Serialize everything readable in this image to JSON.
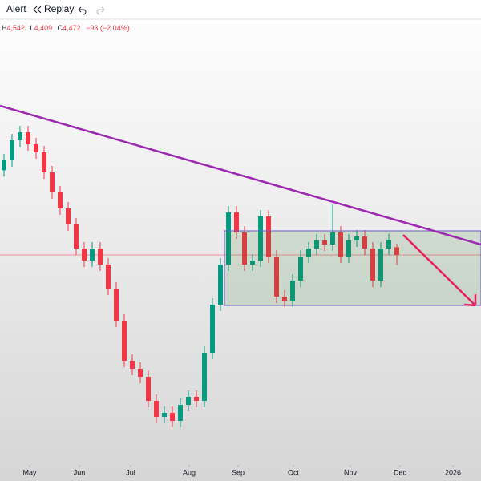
{
  "toolbar": {
    "alert": "Alert",
    "replay": "Replay"
  },
  "legend": {
    "h_label": "H",
    "h": "4,542",
    "l_label": "L",
    "l": "4,409",
    "c_label": "C",
    "c": "4,472",
    "change": "−93 (−2.04%)"
  },
  "chart_data": {
    "type": "candlestick",
    "up_color": "#089981",
    "down_color": "#f23645",
    "xlim": [
      -0.5,
      59.5
    ],
    "ylim": [
      3062,
      6062
    ],
    "xticks": [
      {
        "value": 3.2,
        "label": "May"
      },
      {
        "value": 9.4,
        "label": "Jun"
      },
      {
        "value": 15.8,
        "label": "Jul"
      },
      {
        "value": 23.1,
        "label": "Aug"
      },
      {
        "value": 29.2,
        "label": "Sep"
      },
      {
        "value": 36.1,
        "label": "Oct"
      },
      {
        "value": 43.2,
        "label": "Nov"
      },
      {
        "value": 49.4,
        "label": "Dec"
      },
      {
        "value": 56,
        "label": "2026"
      }
    ],
    "open": [
      5000,
      5062,
      5187,
      5237,
      5162,
      5112,
      4987,
      4862,
      4762,
      4662,
      4512,
      4437,
      4512,
      4412,
      4262,
      4062,
      3812,
      3762,
      3712,
      3562,
      3462,
      3487,
      3437,
      3537,
      3587,
      3562,
      3862,
      4162,
      4412,
      4737,
      4612,
      4412,
      4437,
      4712,
      4462,
      4212,
      4187,
      4312,
      4462,
      4512,
      4562,
      4537,
      4612,
      4462,
      4562,
      4587,
      4512,
      4312,
      4512,
      4520
    ],
    "high": [
      5102,
      5227,
      5277,
      5277,
      5202,
      5152,
      5027,
      4902,
      4802,
      4702,
      4552,
      4552,
      4552,
      4452,
      4302,
      4102,
      3852,
      3802,
      3752,
      3602,
      3527,
      3527,
      3577,
      3627,
      3627,
      3902,
      4202,
      4452,
      4777,
      4777,
      4652,
      4477,
      4752,
      4752,
      4502,
      4252,
      4352,
      4502,
      4552,
      4602,
      4602,
      4787,
      4652,
      4602,
      4627,
      4627,
      4552,
      4552,
      4605,
      4542
    ],
    "low": [
      4960,
      5022,
      5147,
      5122,
      5072,
      4947,
      4822,
      4722,
      4622,
      4472,
      4397,
      4397,
      4372,
      4222,
      4022,
      3772,
      3722,
      3672,
      3522,
      3422,
      3422,
      3397,
      3397,
      3497,
      3522,
      3522,
      3822,
      4122,
      4372,
      4572,
      4372,
      4372,
      4397,
      4422,
      4172,
      4147,
      4147,
      4272,
      4422,
      4472,
      4497,
      4497,
      4422,
      4422,
      4522,
      4472,
      4272,
      4272,
      4472,
      4409
    ],
    "close": [
      5062,
      5187,
      5237,
      5162,
      5112,
      4987,
      4862,
      4762,
      4662,
      4512,
      4437,
      4512,
      4412,
      4262,
      4062,
      3812,
      3762,
      3712,
      3562,
      3462,
      3487,
      3437,
      3537,
      3587,
      3562,
      3862,
      4162,
      4412,
      4737,
      4612,
      4412,
      4437,
      4712,
      4462,
      4212,
      4187,
      4312,
      4462,
      4512,
      4562,
      4537,
      4612,
      4462,
      4562,
      4587,
      4512,
      4312,
      4512,
      4565,
      4472
    ]
  }
}
